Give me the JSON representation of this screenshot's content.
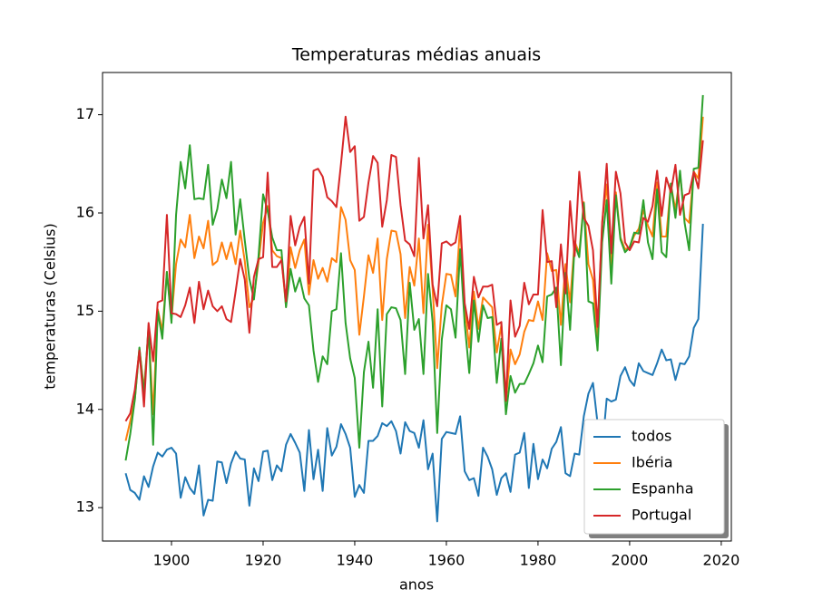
{
  "chart_data": {
    "type": "line",
    "title": "Temperaturas médias anuais",
    "xlabel": "anos",
    "ylabel": "temperaturas (Celsius)",
    "x": [
      1890,
      1891,
      1892,
      1893,
      1894,
      1895,
      1896,
      1897,
      1898,
      1899,
      1900,
      1901,
      1902,
      1903,
      1904,
      1905,
      1906,
      1907,
      1908,
      1909,
      1910,
      1911,
      1912,
      1913,
      1914,
      1915,
      1916,
      1917,
      1918,
      1919,
      1920,
      1921,
      1922,
      1923,
      1924,
      1925,
      1926,
      1927,
      1928,
      1929,
      1930,
      1931,
      1932,
      1933,
      1934,
      1935,
      1936,
      1937,
      1938,
      1939,
      1940,
      1941,
      1942,
      1943,
      1944,
      1945,
      1946,
      1947,
      1948,
      1949,
      1950,
      1951,
      1952,
      1953,
      1954,
      1955,
      1956,
      1957,
      1958,
      1959,
      1960,
      1961,
      1962,
      1963,
      1964,
      1965,
      1966,
      1967,
      1968,
      1969,
      1970,
      1971,
      1972,
      1973,
      1974,
      1975,
      1976,
      1977,
      1978,
      1979,
      1980,
      1981,
      1982,
      1983,
      1984,
      1985,
      1986,
      1987,
      1988,
      1989,
      1990,
      1991,
      1992,
      1993,
      1994,
      1995,
      1996,
      1997,
      1998,
      1999,
      2000,
      2001,
      2002,
      2003,
      2004,
      2005,
      2006,
      2007,
      2008,
      2009,
      2010,
      2011,
      2012,
      2013,
      2014,
      2015,
      2016
    ],
    "series": [
      {
        "name": "todos",
        "color": "#1f77b4",
        "values": [
          13.35,
          13.18,
          13.15,
          13.08,
          13.32,
          13.21,
          13.42,
          13.56,
          13.52,
          13.59,
          13.61,
          13.55,
          13.1,
          13.31,
          13.2,
          13.14,
          13.43,
          12.92,
          13.08,
          13.07,
          13.47,
          13.46,
          13.25,
          13.45,
          13.57,
          13.5,
          13.49,
          13.02,
          13.4,
          13.27,
          13.57,
          13.58,
          13.28,
          13.43,
          13.37,
          13.64,
          13.75,
          13.66,
          13.56,
          13.17,
          13.79,
          13.29,
          13.59,
          13.17,
          13.81,
          13.53,
          13.62,
          13.85,
          13.75,
          13.61,
          13.11,
          13.23,
          13.15,
          13.68,
          13.68,
          13.73,
          13.86,
          13.83,
          13.88,
          13.78,
          13.55,
          13.87,
          13.78,
          13.76,
          13.61,
          13.89,
          13.39,
          13.55,
          12.86,
          13.7,
          13.77,
          13.76,
          13.75,
          13.93,
          13.37,
          13.28,
          13.3,
          13.12,
          13.61,
          13.52,
          13.39,
          13.13,
          13.3,
          13.35,
          13.16,
          13.54,
          13.56,
          13.76,
          13.2,
          13.65,
          13.29,
          13.49,
          13.4,
          13.6,
          13.67,
          13.82,
          13.35,
          13.32,
          13.55,
          13.54,
          13.93,
          14.16,
          14.27,
          13.86,
          13.58,
          14.11,
          14.08,
          14.1,
          14.34,
          14.43,
          14.3,
          14.24,
          14.47,
          14.39,
          14.37,
          14.35,
          14.47,
          14.61,
          14.5,
          14.51,
          14.3,
          14.47,
          14.46,
          14.54,
          14.83,
          14.92,
          15.89
        ]
      },
      {
        "name": "Ibéria",
        "color": "#ff7f0e",
        "values": [
          13.68,
          13.88,
          14.1,
          14.62,
          14.2,
          14.82,
          13.95,
          15.02,
          14.8,
          15.4,
          14.92,
          15.48,
          15.73,
          15.65,
          15.98,
          15.54,
          15.76,
          15.64,
          15.92,
          15.47,
          15.51,
          15.7,
          15.53,
          15.7,
          15.48,
          15.82,
          15.51,
          15.04,
          15.14,
          15.5,
          15.9,
          16.07,
          15.62,
          15.56,
          15.54,
          15.05,
          15.65,
          15.44,
          15.62,
          15.73,
          15.17,
          15.52,
          15.33,
          15.44,
          15.3,
          15.54,
          15.5,
          16.06,
          15.93,
          15.52,
          15.42,
          14.76,
          15.15,
          15.57,
          15.39,
          15.74,
          14.91,
          15.53,
          15.82,
          15.81,
          15.58,
          14.93,
          15.45,
          15.26,
          15.74,
          14.98,
          15.88,
          15.23,
          14.42,
          15.06,
          15.38,
          15.37,
          15.15,
          15.87,
          15.04,
          14.63,
          15.2,
          14.82,
          15.14,
          15.09,
          15.04,
          14.58,
          14.86,
          14.08,
          14.61,
          14.46,
          14.56,
          14.79,
          14.91,
          14.9,
          15.1,
          14.91,
          15.59,
          15.41,
          15.42,
          14.86,
          15.48,
          15.09,
          15.71,
          15.59,
          16.11,
          15.48,
          15.32,
          14.7,
          15.91,
          16.29,
          15.46,
          16.21,
          15.75,
          15.63,
          15.65,
          15.77,
          15.84,
          16.03,
          15.87,
          15.76,
          16.31,
          15.76,
          15.76,
          16.29,
          16.03,
          16.4,
          15.95,
          15.9,
          16.42,
          16.35,
          16.98
        ]
      },
      {
        "name": "Espanha",
        "color": "#2ca02c",
        "values": [
          13.48,
          13.75,
          14.1,
          14.63,
          14.15,
          14.85,
          13.64,
          15.0,
          14.72,
          15.4,
          14.88,
          15.98,
          16.52,
          16.25,
          16.69,
          16.14,
          16.15,
          16.14,
          16.49,
          15.88,
          16.04,
          16.34,
          16.15,
          16.52,
          15.78,
          16.14,
          15.72,
          15.33,
          15.12,
          15.56,
          16.19,
          16.02,
          15.75,
          15.62,
          15.62,
          15.04,
          15.43,
          15.2,
          15.34,
          15.13,
          15.06,
          14.6,
          14.28,
          14.54,
          14.46,
          15.0,
          15.02,
          15.59,
          14.88,
          14.52,
          14.32,
          13.61,
          14.38,
          14.69,
          14.22,
          15.02,
          14.03,
          14.97,
          15.04,
          15.03,
          14.91,
          14.36,
          15.29,
          14.81,
          14.92,
          14.36,
          15.38,
          14.89,
          13.76,
          14.71,
          15.06,
          15.02,
          14.73,
          15.63,
          14.87,
          14.37,
          15.11,
          14.69,
          15.06,
          14.93,
          14.94,
          14.27,
          14.72,
          13.95,
          14.34,
          14.17,
          14.26,
          14.26,
          14.36,
          14.47,
          14.65,
          14.48,
          15.15,
          15.17,
          15.24,
          14.45,
          15.39,
          14.81,
          15.68,
          15.55,
          16.1,
          15.1,
          15.08,
          14.6,
          15.7,
          16.13,
          15.28,
          16.18,
          15.73,
          15.6,
          15.65,
          15.8,
          15.79,
          16.13,
          15.7,
          15.53,
          16.24,
          15.6,
          15.55,
          16.3,
          15.95,
          16.43,
          15.9,
          15.62,
          16.45,
          16.46,
          17.2
        ]
      },
      {
        "name": "Portugal",
        "color": "#d62728",
        "values": [
          13.88,
          13.96,
          14.2,
          14.6,
          14.03,
          14.88,
          14.49,
          15.09,
          15.11,
          15.98,
          14.98,
          14.97,
          14.94,
          15.06,
          15.24,
          14.88,
          15.3,
          15.02,
          15.21,
          15.05,
          15.0,
          15.05,
          14.92,
          14.89,
          15.2,
          15.53,
          15.32,
          14.78,
          15.35,
          15.53,
          15.55,
          16.41,
          15.45,
          15.45,
          15.52,
          15.1,
          15.97,
          15.67,
          15.86,
          15.96,
          15.28,
          16.43,
          16.45,
          16.37,
          16.16,
          16.12,
          16.06,
          16.5,
          16.98,
          16.62,
          16.68,
          15.92,
          15.96,
          16.31,
          16.58,
          16.51,
          15.86,
          16.13,
          16.59,
          16.57,
          16.08,
          15.72,
          15.68,
          15.56,
          16.56,
          15.74,
          16.08,
          15.27,
          15.05,
          15.69,
          15.71,
          15.67,
          15.7,
          15.97,
          15.08,
          14.82,
          15.35,
          15.14,
          15.25,
          15.25,
          15.27,
          14.86,
          14.89,
          14.09,
          15.11,
          14.74,
          14.85,
          15.29,
          15.07,
          15.17,
          15.17,
          16.03,
          15.5,
          15.51,
          15.04,
          15.68,
          15.18,
          16.12,
          15.56,
          16.42,
          15.95,
          15.87,
          15.62,
          14.84,
          15.88,
          16.5,
          15.59,
          16.42,
          16.2,
          15.7,
          15.62,
          15.71,
          15.7,
          15.95,
          15.91,
          16.07,
          16.43,
          15.97,
          16.36,
          16.21,
          16.49,
          15.98,
          16.18,
          16.2,
          16.42,
          16.25,
          16.74
        ]
      }
    ],
    "xlim": [
      1884.95,
      2022.2
    ],
    "xticks": [
      1900,
      1920,
      1940,
      1960,
      1980,
      2000,
      2020
    ],
    "ylim": [
      12.66,
      17.43
    ],
    "yticks": [
      13,
      14,
      15,
      16,
      17
    ],
    "legend": "lower right"
  }
}
